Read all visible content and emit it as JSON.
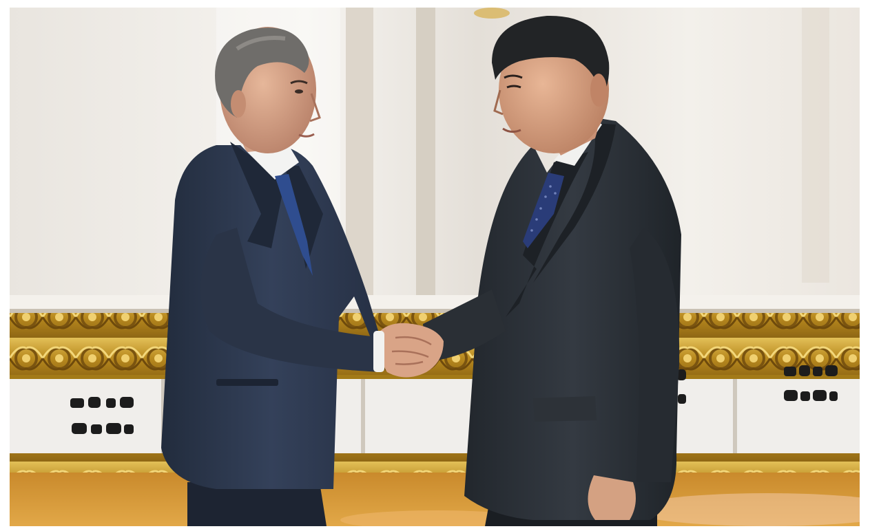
{
  "photo": {
    "subject": "handshake",
    "people": [
      {
        "name": "person-left",
        "suit_color": "#2e3a4f",
        "tie_color": "#2f4d8f"
      },
      {
        "name": "person-right",
        "suit_color": "#2b3036",
        "tie_color": "#2a3c78"
      }
    ],
    "colors": {
      "wall": "#ece8e2",
      "column": "#e6e0d6",
      "gold_frieze": "#c8a02c",
      "panel": "#f1efec",
      "carpet": "#d99a3a",
      "border": "#ffffff"
    }
  }
}
